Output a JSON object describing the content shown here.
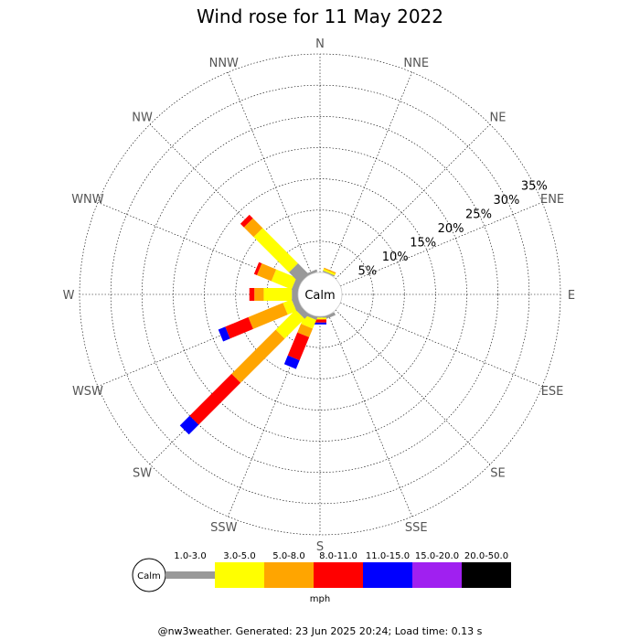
{
  "title": "Wind rose for 11 May 2022",
  "footer": "@nw3weather. Generated: 23 Jun 2025 20:24; Load time: 0.13 s",
  "chart_data": {
    "type": "wind-rose",
    "directions": [
      "N",
      "NNE",
      "NE",
      "ENE",
      "E",
      "ESE",
      "SE",
      "SSE",
      "S",
      "SSW",
      "SW",
      "WSW",
      "W",
      "WNW",
      "NW",
      "NNW"
    ],
    "radial_ticks": [
      "5%",
      "10%",
      "15%",
      "20%",
      "25%",
      "30%",
      "35%"
    ],
    "radial_tick_values": [
      5,
      10,
      15,
      20,
      25,
      30,
      35
    ],
    "rmax": 35,
    "calm_label": "Calm",
    "legend_unit": "mph",
    "speed_bins": [
      {
        "label": "1.0-3.0",
        "color": "#999999"
      },
      {
        "label": "3.0-5.0",
        "color": "#ffff00"
      },
      {
        "label": "5.0-8.0",
        "color": "#ffa500"
      },
      {
        "label": "8.0-11.0",
        "color": "#ff0000"
      },
      {
        "label": "11.0-15.0",
        "color": "#0000ff"
      },
      {
        "label": "15.0-20.0",
        "color": "#a020f0"
      },
      {
        "label": "20.0-50.0",
        "color": "#000000"
      }
    ],
    "series": [
      {
        "direction": "NNE",
        "values": [
          0.2,
          0.3,
          0.2,
          0,
          0,
          0,
          0
        ]
      },
      {
        "direction": "SSE",
        "values": [
          0.5,
          0,
          0,
          0,
          0,
          0,
          0
        ]
      },
      {
        "direction": "S",
        "values": [
          0.2,
          0.3,
          0,
          0.5,
          0.3,
          0,
          0
        ]
      },
      {
        "direction": "SSW",
        "values": [
          0.5,
          1.5,
          1.5,
          4.0,
          1.5,
          0,
          0
        ]
      },
      {
        "direction": "SW",
        "values": [
          1.0,
          4.5,
          10.0,
          9.5,
          2.2,
          0,
          0
        ]
      },
      {
        "direction": "WSW",
        "values": [
          1.0,
          1.5,
          6.0,
          4.0,
          1.2,
          0,
          0
        ]
      },
      {
        "direction": "W",
        "values": [
          1.0,
          4.5,
          1.5,
          0.8,
          0,
          0,
          0
        ]
      },
      {
        "direction": "WNW",
        "values": [
          1.0,
          3.5,
          2.5,
          0.5,
          0,
          0,
          0
        ]
      },
      {
        "direction": "NW",
        "values": [
          2.5,
          8.0,
          2.2,
          0.8,
          0,
          0,
          0
        ]
      },
      {
        "direction": "NNW",
        "values": [
          0.4,
          0,
          0,
          0,
          0,
          0,
          0
        ]
      }
    ]
  }
}
